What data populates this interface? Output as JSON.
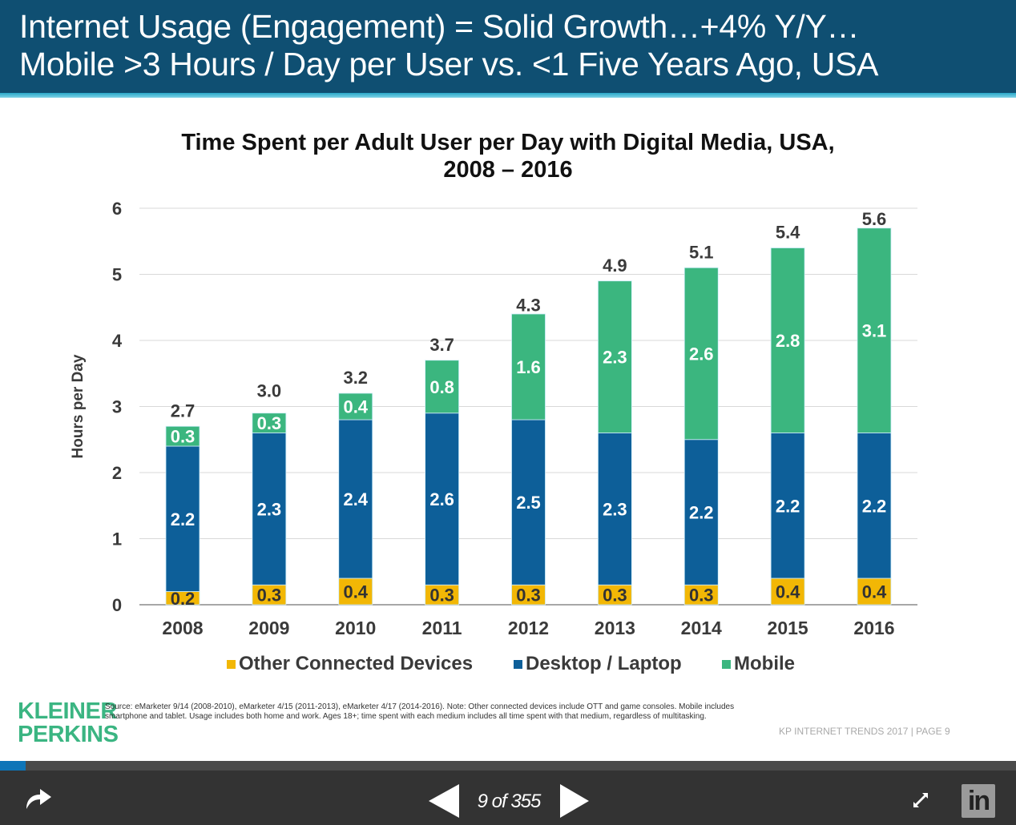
{
  "header": {
    "line1": "Internet Usage (Engagement) = Solid Growth…+4% Y/Y…",
    "line2": "Mobile >3 Hours / Day per User vs. <1 Five Years Ago, USA"
  },
  "chart_data": {
    "type": "bar",
    "stacked": true,
    "title": "Time Spent per Adult User per Day with Digital Media, USA, 2008 – 2016",
    "title_line1": "Time Spent per Adult User per Day with Digital Media, USA,",
    "title_line2": "2008 – 2016",
    "xlabel": "",
    "ylabel": "Hours per Day",
    "ylim": [
      0,
      6
    ],
    "yticks": [
      0,
      1,
      2,
      3,
      4,
      5,
      6
    ],
    "grid": true,
    "legend_position": "bottom-center",
    "categories": [
      "2008",
      "2009",
      "2010",
      "2011",
      "2012",
      "2013",
      "2014",
      "2015",
      "2016"
    ],
    "series": [
      {
        "name": "Other Connected Devices",
        "color": "#f2b705",
        "label_color": "#333333",
        "values": [
          0.2,
          0.3,
          0.4,
          0.3,
          0.3,
          0.3,
          0.3,
          0.4,
          0.4
        ]
      },
      {
        "name": "Desktop / Laptop",
        "color": "#0d5f99",
        "label_color": "#ffffff",
        "values": [
          2.2,
          2.3,
          2.4,
          2.6,
          2.5,
          2.3,
          2.2,
          2.2,
          2.2
        ]
      },
      {
        "name": "Mobile",
        "color": "#3bb67f",
        "label_color": "#ffffff",
        "values": [
          0.3,
          0.3,
          0.4,
          0.8,
          1.6,
          2.3,
          2.6,
          2.8,
          3.1
        ]
      }
    ],
    "totals": [
      2.7,
      3.0,
      3.2,
      3.7,
      4.3,
      4.9,
      5.1,
      5.4,
      5.6
    ]
  },
  "footer": {
    "logo_line1": "KLEINER",
    "logo_line2": "PERKINS",
    "source": "Source: eMarketer 9/14 (2008-2010), eMarketer 4/15 (2011-2013), eMarketer 4/17 (2014-2016). Note: Other connected devices include OTT and game consoles. Mobile includes smartphone and tablet. Usage includes both home and work. Ages 18+; time spent with each medium includes all time spent with that medium, regardless of multitasking.",
    "page_label": "KP INTERNET TRENDS 2017  |  PAGE 9"
  },
  "viewer": {
    "page_count": "9 of 355",
    "current_page": 9,
    "total_pages": 355,
    "progress": 0.0254,
    "accent": "#0e75b8",
    "icons": {
      "share": "share-arrow-icon",
      "prev": "triangle-left-icon",
      "next": "triangle-right-icon",
      "expand": "expand-arrows-icon",
      "linkedin": "linkedin-logo-icon"
    },
    "linkedin_text": "in"
  }
}
